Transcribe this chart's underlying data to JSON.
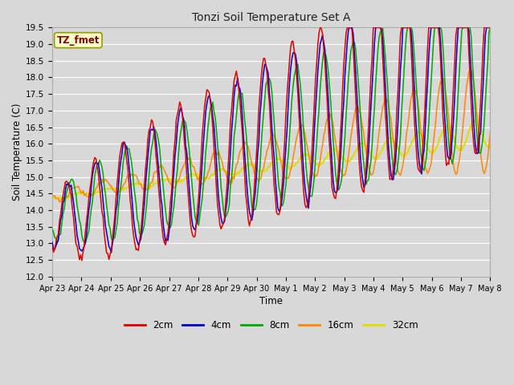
{
  "title": "Tonzi Soil Temperature Set A",
  "xlabel": "Time",
  "ylabel": "Soil Temperature (C)",
  "ylim": [
    12.0,
    19.5
  ],
  "legend_label": "TZ_fmet",
  "series_labels": [
    "2cm",
    "4cm",
    "8cm",
    "16cm",
    "32cm"
  ],
  "series_colors": [
    "#dd0000",
    "#0000cc",
    "#00aa00",
    "#ff8800",
    "#dddd00"
  ],
  "xtick_labels": [
    "Apr 23",
    "Apr 24",
    "Apr 25",
    "Apr 26",
    "Apr 27",
    "Apr 28",
    "Apr 29",
    "Apr 30",
    "May 1",
    "May 2",
    "May 3",
    "May 4",
    "May 5",
    "May 6",
    "May 7",
    "May 8"
  ],
  "background_color": "#d8d8d8",
  "plot_bg_color": "#d8d8d8",
  "grid_color": "#ffffff",
  "yticks": [
    12.0,
    12.5,
    13.0,
    13.5,
    14.0,
    14.5,
    15.0,
    15.5,
    16.0,
    16.5,
    17.0,
    17.5,
    18.0,
    18.5,
    19.0,
    19.5
  ],
  "n_days": 15.5,
  "n_pts": 372
}
